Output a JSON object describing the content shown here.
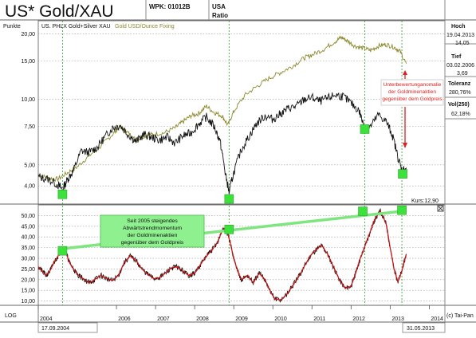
{
  "header": {
    "title": "US* Gold/XAU",
    "wpk": "WPK: 01012B",
    "country": "USA",
    "ratio": "Ratio"
  },
  "upper_panel": {
    "unit": "Punkte",
    "legend_black": "US. PHLX Gold+Silver XAU",
    "legend_gold": "Gold USD/Ounce Fixing",
    "annotation_red": [
      "Unterbewertunganomalie",
      "der Goldminenaktien",
      "gegenüber dem Goldpreis"
    ],
    "kurs": "Kurs:12,90"
  },
  "lower_panel": {
    "annotation_green": [
      "Seit 2005 steigendes",
      "Abwärtstrendmomentum",
      "der Goldminenaktien",
      "gegenüber dem Goldpreis"
    ]
  },
  "stats": [
    {
      "label": "Hoch",
      "date": "19.04.2013",
      "value": "14,05"
    },
    {
      "label": "Tief",
      "date": "03.02.2006",
      "value": "3,69"
    },
    {
      "label": "Toleranz",
      "value": "280,76%"
    },
    {
      "label": "Vol(250)",
      "value": "62,18%"
    }
  ],
  "footer": {
    "log": "LOG",
    "start_date": "17.09.2004",
    "end_date": "31.05.2013",
    "credit": "(c) Tai-Pan"
  },
  "colors": {
    "xau_line": "#111111",
    "gold_line": "#8c8a2e",
    "momentum_red": "#d01010",
    "momentum_black": "#111111",
    "marker_green": "#3ce23c",
    "trend_green": "#7fe57f",
    "annotation_red": "#e02020",
    "grid": "#9a9a9a",
    "vline_green": "#2aa02a"
  },
  "chart_data": [
    {
      "type": "line",
      "scale": "log",
      "ylabel": "Punkte",
      "ylim": [
        3.3,
        23
      ],
      "xlim": [
        2004.0,
        2014.4
      ],
      "y_ticks": [
        4.0,
        5.0,
        7.5,
        10.0,
        15.0,
        20.0
      ],
      "y_tick_labels": [
        "4,00",
        "5,00",
        "7,50",
        "10,00",
        "15,00",
        "20,00"
      ],
      "grid": true,
      "series": [
        {
          "name": "US. PHLX Gold+Silver XAU",
          "x": [
            2004.0,
            2004.25,
            2004.5,
            2004.62,
            2004.75,
            2004.9,
            2005.1,
            2005.3,
            2005.5,
            2005.7,
            2005.9,
            2006.09,
            2006.3,
            2006.5,
            2006.7,
            2006.9,
            2007.1,
            2007.3,
            2007.5,
            2007.7,
            2007.9,
            2008.1,
            2008.3,
            2008.5,
            2008.65,
            2008.78,
            2008.88,
            2009.0,
            2009.2,
            2009.4,
            2009.6,
            2009.8,
            2010.0,
            2010.2,
            2010.4,
            2010.6,
            2010.8,
            2011.0,
            2011.2,
            2011.4,
            2011.6,
            2011.8,
            2012.0,
            2012.2,
            2012.35,
            2012.5,
            2012.7,
            2012.9,
            2013.05,
            2013.2,
            2013.3,
            2013.41
          ],
          "values": [
            4.4,
            4.3,
            4.05,
            3.85,
            4.3,
            4.7,
            5.8,
            5.7,
            6.0,
            6.7,
            7.4,
            7.6,
            6.9,
            6.4,
            6.9,
            6.7,
            6.5,
            6.7,
            6.3,
            6.8,
            7.0,
            7.7,
            8.3,
            7.5,
            6.4,
            4.6,
            3.73,
            4.6,
            5.9,
            6.8,
            7.8,
            8.4,
            8.1,
            8.6,
            9.1,
            9.3,
            10.0,
            10.2,
            9.8,
            10.1,
            10.5,
            10.3,
            9.6,
            8.9,
            7.3,
            7.5,
            8.5,
            7.9,
            6.9,
            5.4,
            4.7,
            4.85
          ]
        },
        {
          "name": "Gold USD/Ounce Fixing",
          "x": [
            2004.0,
            2004.25,
            2004.5,
            2004.75,
            2005.0,
            2005.3,
            2005.6,
            2005.9,
            2006.09,
            2006.3,
            2006.5,
            2006.7,
            2006.9,
            2007.2,
            2007.5,
            2007.7,
            2007.9,
            2008.1,
            2008.3,
            2008.5,
            2008.7,
            2008.85,
            2009.0,
            2009.3,
            2009.6,
            2009.9,
            2010.2,
            2010.5,
            2010.8,
            2011.0,
            2011.3,
            2011.6,
            2011.75,
            2011.9,
            2012.1,
            2012.3,
            2012.5,
            2012.7,
            2012.9,
            2013.1,
            2013.25,
            2013.41
          ],
          "values": [
            4.5,
            4.35,
            4.3,
            4.6,
            4.9,
            5.5,
            6.1,
            6.9,
            7.5,
            7.0,
            6.5,
            6.8,
            6.9,
            7.0,
            7.4,
            7.9,
            8.4,
            8.6,
            9.3,
            8.7,
            8.4,
            7.6,
            8.8,
            10.5,
            11.5,
            12.5,
            13.3,
            14.2,
            15.5,
            16.0,
            17.0,
            18.5,
            19.3,
            18.6,
            17.6,
            17.2,
            16.8,
            17.6,
            17.9,
            17.4,
            16.6,
            14.6
          ]
        }
      ],
      "annotations": [
        "Unterbewertunganomalie der Goldminenaktien gegenüber dem Goldpreis",
        "Kurs:12,90"
      ]
    },
    {
      "type": "line",
      "ylim": [
        8,
        55
      ],
      "xlim": [
        2004.0,
        2014.4
      ],
      "y_ticks": [
        10,
        15,
        20,
        25,
        30,
        35,
        40,
        45,
        50
      ],
      "y_tick_labels": [
        "10,00",
        "15,00",
        "20,00",
        "25,00",
        "30,00",
        "35,00",
        "40,00",
        "45,00",
        "50,00"
      ],
      "x_tick_labels": [
        "2004",
        "2006",
        "2007",
        "2008",
        "2009",
        "2010",
        "2011",
        "2012",
        "2013",
        "2014"
      ],
      "grid": true,
      "series": [
        {
          "x": [
            2004.0,
            2004.1,
            2004.2,
            2004.3,
            2004.4,
            2004.5,
            2004.6,
            2004.7,
            2004.8,
            2004.9,
            2005.0,
            2005.15,
            2005.3,
            2005.45,
            2005.6,
            2005.75,
            2005.9,
            2006.05,
            2006.2,
            2006.35,
            2006.5,
            2006.65,
            2006.8,
            2006.95,
            2007.1,
            2007.25,
            2007.4,
            2007.55,
            2007.7,
            2007.85,
            2008.0,
            2008.15,
            2008.3,
            2008.45,
            2008.6,
            2008.7,
            2008.8,
            2008.9,
            2009.0,
            2009.1,
            2009.2,
            2009.35,
            2009.5,
            2009.65,
            2009.8,
            2009.95,
            2010.05,
            2010.2,
            2010.35,
            2010.5,
            2010.65,
            2010.8,
            2010.95,
            2011.1,
            2011.25,
            2011.4,
            2011.55,
            2011.7,
            2011.85,
            2012.0,
            2012.1,
            2012.2,
            2012.3,
            2012.4,
            2012.5,
            2012.6,
            2012.75,
            2012.9,
            2013.0,
            2013.1,
            2013.2,
            2013.3,
            2013.41
          ],
          "values": [
            26,
            24,
            22,
            24,
            28,
            31,
            34.5,
            33,
            28,
            25,
            22.5,
            20.5,
            18.5,
            20,
            22,
            20.5,
            19.5,
            22,
            28,
            31,
            29,
            25,
            22.5,
            20.5,
            21,
            23,
            25.5,
            26,
            24,
            22,
            23,
            27,
            31,
            34,
            38,
            43,
            44,
            38,
            30,
            24,
            20,
            22,
            18.5,
            23,
            20,
            14,
            11,
            10.5,
            13,
            17,
            21,
            26,
            31,
            34,
            36,
            32,
            26,
            20,
            16,
            17,
            22,
            28,
            33,
            38,
            43,
            48,
            52,
            46,
            35,
            25,
            19,
            24,
            32
          ]
        }
      ],
      "annotations": [
        "Seit 2005 steigendes Abwärtstrendmomentum der Goldminenaktien gegenüber dem Goldpreis"
      ]
    }
  ]
}
